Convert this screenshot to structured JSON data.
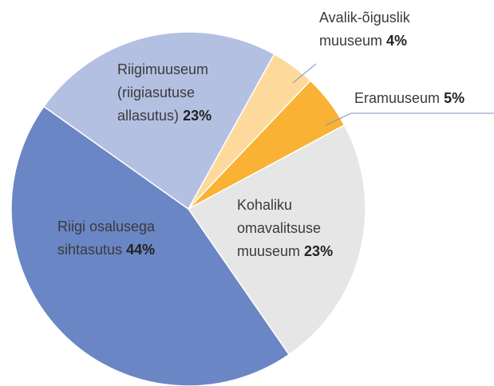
{
  "chart_data": {
    "type": "pie",
    "categories": [
      "Avalik-õiguslik muuseum",
      "Eramuuseum",
      "Kohaliku omavalitsuse muuseum",
      "Riigi osalusega sihtasutus",
      "Riigimuuseum (riigiasutuse allasutus)"
    ],
    "values": [
      4,
      5,
      23,
      44,
      23
    ],
    "value_labels": [
      "4%",
      "5%",
      "23%",
      "44%",
      "23%"
    ],
    "colors": [
      "#fdd99b",
      "#f9b233",
      "#e6e6e6",
      "#6a86c5",
      "#b4c0e2"
    ]
  }
}
